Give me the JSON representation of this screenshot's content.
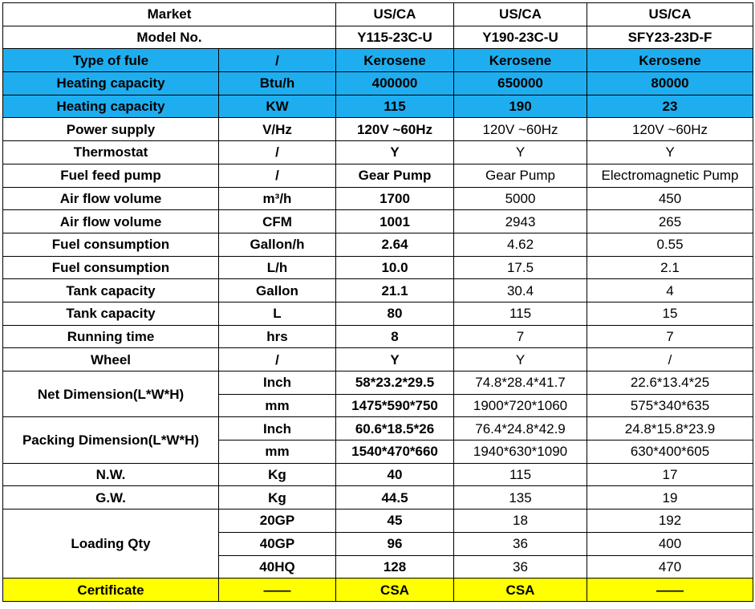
{
  "header": {
    "market_label": "Market",
    "model_label": "Model No.",
    "markets": [
      "US/CA",
      "US/CA",
      "US/CA"
    ],
    "models": [
      "Y115-23C-U",
      "Y190-23C-U",
      "SFY23-23D-F"
    ]
  },
  "rows": [
    {
      "label": "Type of fule",
      "unit": "/",
      "values": [
        "Kerosene",
        "Kerosene",
        "Kerosene"
      ]
    },
    {
      "label": "Heating capacity",
      "unit": "Btu/h",
      "values": [
        "400000",
        "650000",
        "80000"
      ]
    },
    {
      "label": "Heating capacity",
      "unit": "KW",
      "values": [
        "115",
        "190",
        "23"
      ]
    },
    {
      "label": "Power supply",
      "unit": "V/Hz",
      "values": [
        "120V ~60Hz",
        "120V ~60Hz",
        "120V ~60Hz"
      ]
    },
    {
      "label": "Thermostat",
      "unit": "/",
      "values": [
        "Y",
        "Y",
        "Y"
      ]
    },
    {
      "label": "Fuel feed pump",
      "unit": "/",
      "values": [
        "Gear Pump",
        "Gear Pump",
        "Electromagnetic Pump"
      ]
    },
    {
      "label": "Air flow volume",
      "unit": "m³/h",
      "values": [
        "1700",
        "5000",
        "450"
      ]
    },
    {
      "label": "Air flow volume",
      "unit": "CFM",
      "values": [
        "1001",
        "2943",
        "265"
      ]
    },
    {
      "label": "Fuel consumption",
      "unit": "Gallon/h",
      "values": [
        "2.64",
        "4.62",
        "0.55"
      ]
    },
    {
      "label": "Fuel consumption",
      "unit": "L/h",
      "values": [
        "10.0",
        "17.5",
        "2.1"
      ]
    },
    {
      "label": "Tank capacity",
      "unit": "Gallon",
      "values": [
        "21.1",
        "30.4",
        "4"
      ]
    },
    {
      "label": "Tank capacity",
      "unit": "L",
      "values": [
        "80",
        "115",
        "15"
      ]
    },
    {
      "label": "Running time",
      "unit": "hrs",
      "values": [
        "8",
        "7",
        "7"
      ]
    },
    {
      "label": "Wheel",
      "unit": "/",
      "values": [
        "Y",
        "Y",
        "/"
      ]
    }
  ],
  "net_dimension": {
    "label": "Net Dimension(L*W*H)",
    "rows": [
      {
        "unit": "Inch",
        "values": [
          "58*23.2*29.5",
          "74.8*28.4*41.7",
          "22.6*13.4*25"
        ]
      },
      {
        "unit": "mm",
        "values": [
          "1475*590*750",
          "1900*720*1060",
          "575*340*635"
        ]
      }
    ]
  },
  "packing_dimension": {
    "label": "Packing Dimension(L*W*H)",
    "rows": [
      {
        "unit": "Inch",
        "values": [
          "60.6*18.5*26",
          "76.4*24.8*42.9",
          "24.8*15.8*23.9"
        ]
      },
      {
        "unit": "mm",
        "values": [
          "1540*470*660",
          "1940*630*1090",
          "630*400*605"
        ]
      }
    ]
  },
  "weights": [
    {
      "label": "N.W.",
      "unit": "Kg",
      "values": [
        "40",
        "115",
        "17"
      ]
    },
    {
      "label": "G.W.",
      "unit": "Kg",
      "values": [
        "44.5",
        "135",
        "19"
      ]
    }
  ],
  "loading": {
    "label": "Loading Qty",
    "rows": [
      {
        "unit": "20GP",
        "values": [
          "45",
          "18",
          "192"
        ]
      },
      {
        "unit": "40GP",
        "values": [
          "96",
          "36",
          "400"
        ]
      },
      {
        "unit": "40HQ",
        "values": [
          "128",
          "36",
          "470"
        ]
      }
    ]
  },
  "certificate": {
    "label": "Certificate",
    "unit": "——",
    "values": [
      "CSA",
      "CSA",
      "——"
    ]
  },
  "colors": {
    "highlight_blue": "#1eaef0",
    "highlight_yellow": "#ffff00",
    "border": "#000000"
  }
}
